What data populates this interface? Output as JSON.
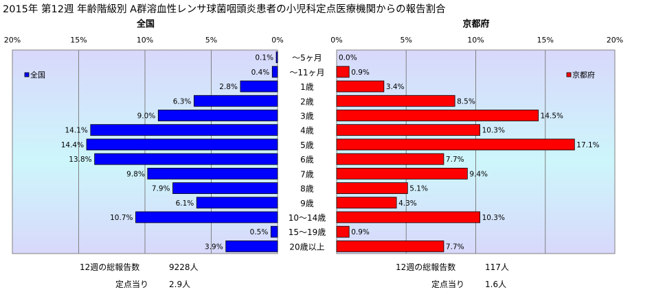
{
  "title": "2015年 第12週 年齢階級別 A群溶血性レンサ球菌咽頭炎患者の小児科定点医療機関からの報告割合",
  "left_panel": {
    "heading": "全国",
    "total_label": "12週の総報告数",
    "total_value": "9228人",
    "per_site_label": "定点当り",
    "per_site_value": "2.9人"
  },
  "right_panel": {
    "heading": "京都府",
    "total_label": "12週の総報告数",
    "total_value": "117人",
    "per_site_label": "定点当り",
    "per_site_value": "1.6人"
  },
  "chart_data": {
    "type": "bar",
    "orientation": "horizontal",
    "layout": "butterfly",
    "categories": [
      "～5ヶ月",
      "～11ヶ月",
      "1歳",
      "2歳",
      "3歳",
      "4歳",
      "5歳",
      "6歳",
      "7歳",
      "8歳",
      "9歳",
      "10～14歳",
      "15～19歳",
      "20歳以上"
    ],
    "xlim": [
      0,
      20
    ],
    "xticks": [
      0,
      5,
      10,
      15,
      20
    ],
    "xtick_labels": [
      "0%",
      "5%",
      "10%",
      "15%",
      "20%"
    ],
    "series": [
      {
        "name": "全国",
        "side": "left",
        "color": "#0000ff",
        "values": [
          0.1,
          0.4,
          2.8,
          6.3,
          9.0,
          14.1,
          14.4,
          13.8,
          9.8,
          7.9,
          6.1,
          10.7,
          0.5,
          3.9
        ],
        "labels": [
          "0.1%",
          "0.4%",
          "2.8%",
          "6.3%",
          "9.0%",
          "14.1%",
          "14.4%",
          "13.8%",
          "9.8%",
          "7.9%",
          "6.1%",
          "10.7%",
          "0.5%",
          "3.9%"
        ]
      },
      {
        "name": "京都府",
        "side": "right",
        "color": "#ff0000",
        "values": [
          0.0,
          0.9,
          3.4,
          8.5,
          14.5,
          10.3,
          17.1,
          7.7,
          9.4,
          5.1,
          4.3,
          10.3,
          0.9,
          7.7
        ],
        "labels": [
          "0.0%",
          "0.9%",
          "3.4%",
          "8.5%",
          "14.5%",
          "10.3%",
          "17.1%",
          "7.7%",
          "9.4%",
          "5.1%",
          "4.3%",
          "10.3%",
          "0.9%",
          "7.7%"
        ]
      }
    ],
    "grid": true,
    "legend_position": "top-left / top-right (inside each panel)"
  }
}
